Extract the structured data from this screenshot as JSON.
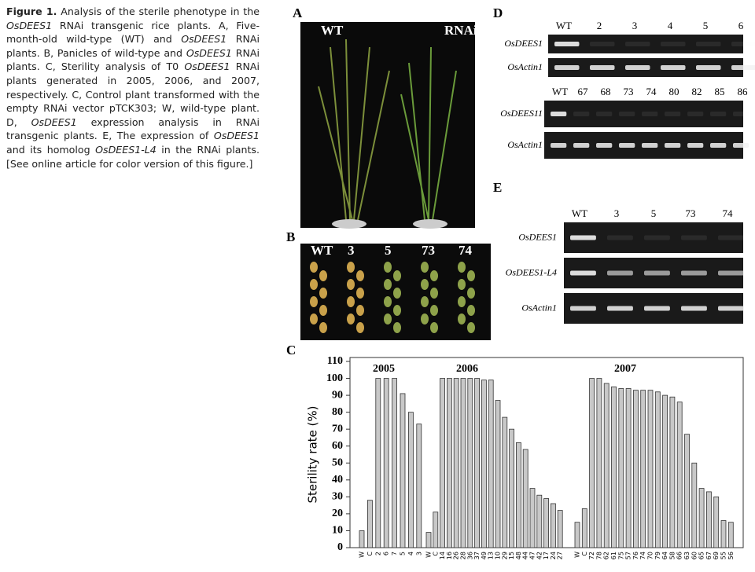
{
  "caption": [
    {
      "text": "Figure 1.",
      "style": "bold"
    },
    {
      "text": " Analysis of the sterile phenotype in the ",
      "style": "normal"
    },
    {
      "text": "OsDEES1",
      "style": "italic"
    },
    {
      "text": " RNAi transgenic rice plants. A, Five-month-old wild-type (WT) and ",
      "style": "normal"
    },
    {
      "text": "OsDEES1",
      "style": "italic"
    },
    {
      "text": " RNAi plants. B, Panicles of wild-type and ",
      "style": "normal"
    },
    {
      "text": "OsDEES1",
      "style": "italic"
    },
    {
      "text": " RNAi plants. C, Sterility analysis of T0 ",
      "style": "normal"
    },
    {
      "text": "OsDEES1",
      "style": "italic"
    },
    {
      "text": " RNAi plants generated in 2005, 2006, and 2007, respectively. C, Control plant transformed with the empty RNAi vector pTCK303; W, wild-type plant. D, ",
      "style": "normal"
    },
    {
      "text": "OsDEES1",
      "style": "italic"
    },
    {
      "text": " expression analysis in RNAi transgenic plants. E, The expression of ",
      "style": "normal"
    },
    {
      "text": "OsDEES1",
      "style": "italic"
    },
    {
      "text": " and its homolog ",
      "style": "normal"
    },
    {
      "text": "OsDEES1-L4",
      "style": "italic"
    },
    {
      "text": " in the RNAi plants. [See online article for color version of this figure.]",
      "style": "normal"
    }
  ],
  "panel_a": {
    "label": "A",
    "left": "WT",
    "right": "RNAi"
  },
  "panel_b": {
    "label": "B",
    "lanes": [
      "WT",
      "3",
      "5",
      "73",
      "74"
    ]
  },
  "panel_d": {
    "label": "D",
    "gels": [
      {
        "lanes": [
          "WT",
          "2",
          "3",
          "4",
          "5",
          "6"
        ],
        "rows": [
          "OsDEES1",
          "OsActin1"
        ]
      },
      {
        "lanes": [
          "WT",
          "67",
          "68",
          "73",
          "74",
          "80",
          "82",
          "85",
          "86"
        ],
        "rows": [
          "OsDEES11",
          "OsActin1"
        ]
      }
    ]
  },
  "panel_e": {
    "label": "E",
    "gels": [
      {
        "lanes": [
          "WT",
          "3",
          "5",
          "73",
          "74"
        ],
        "rows": [
          "OsDEES1",
          "OsDEES1-L4",
          "OsActin1"
        ]
      }
    ]
  },
  "chart_data": {
    "type": "bar",
    "label": "C",
    "y_label": "Sterility rate (%)",
    "ylim": [
      0,
      110
    ],
    "yticks": [
      0,
      10,
      20,
      30,
      40,
      50,
      60,
      70,
      80,
      90,
      100,
      110
    ],
    "color": "#c8c8c8",
    "groups": [
      {
        "label": "2005",
        "categories": [
          "W",
          "C",
          "2",
          "6",
          "7",
          "5",
          "4",
          "3"
        ],
        "values": [
          10,
          28,
          100,
          100,
          100,
          91,
          80,
          73
        ]
      },
      {
        "label": "2006",
        "categories": [
          "W",
          "C",
          "14",
          "16",
          "26",
          "28",
          "36",
          "37",
          "49",
          "13",
          "10",
          "29",
          "15",
          "48",
          "44",
          "47",
          "42",
          "17",
          "24",
          "27"
        ],
        "values": [
          9,
          21,
          100,
          100,
          100,
          100,
          100,
          100,
          99,
          99,
          87,
          77,
          70,
          62,
          58,
          35,
          31,
          29,
          26,
          22
        ]
      },
      {
        "label": "2007",
        "categories": [
          "W",
          "C",
          "72",
          "78",
          "62",
          "61",
          "75",
          "57",
          "76",
          "74",
          "70",
          "79",
          "64",
          "58",
          "66",
          "63",
          "60",
          "65",
          "67",
          "69",
          "55",
          "56"
        ],
        "values": [
          15,
          23,
          100,
          100,
          97,
          95,
          94,
          94,
          93,
          93,
          93,
          92,
          90,
          89,
          86,
          67,
          50,
          35,
          33,
          30,
          16,
          15
        ]
      }
    ]
  }
}
